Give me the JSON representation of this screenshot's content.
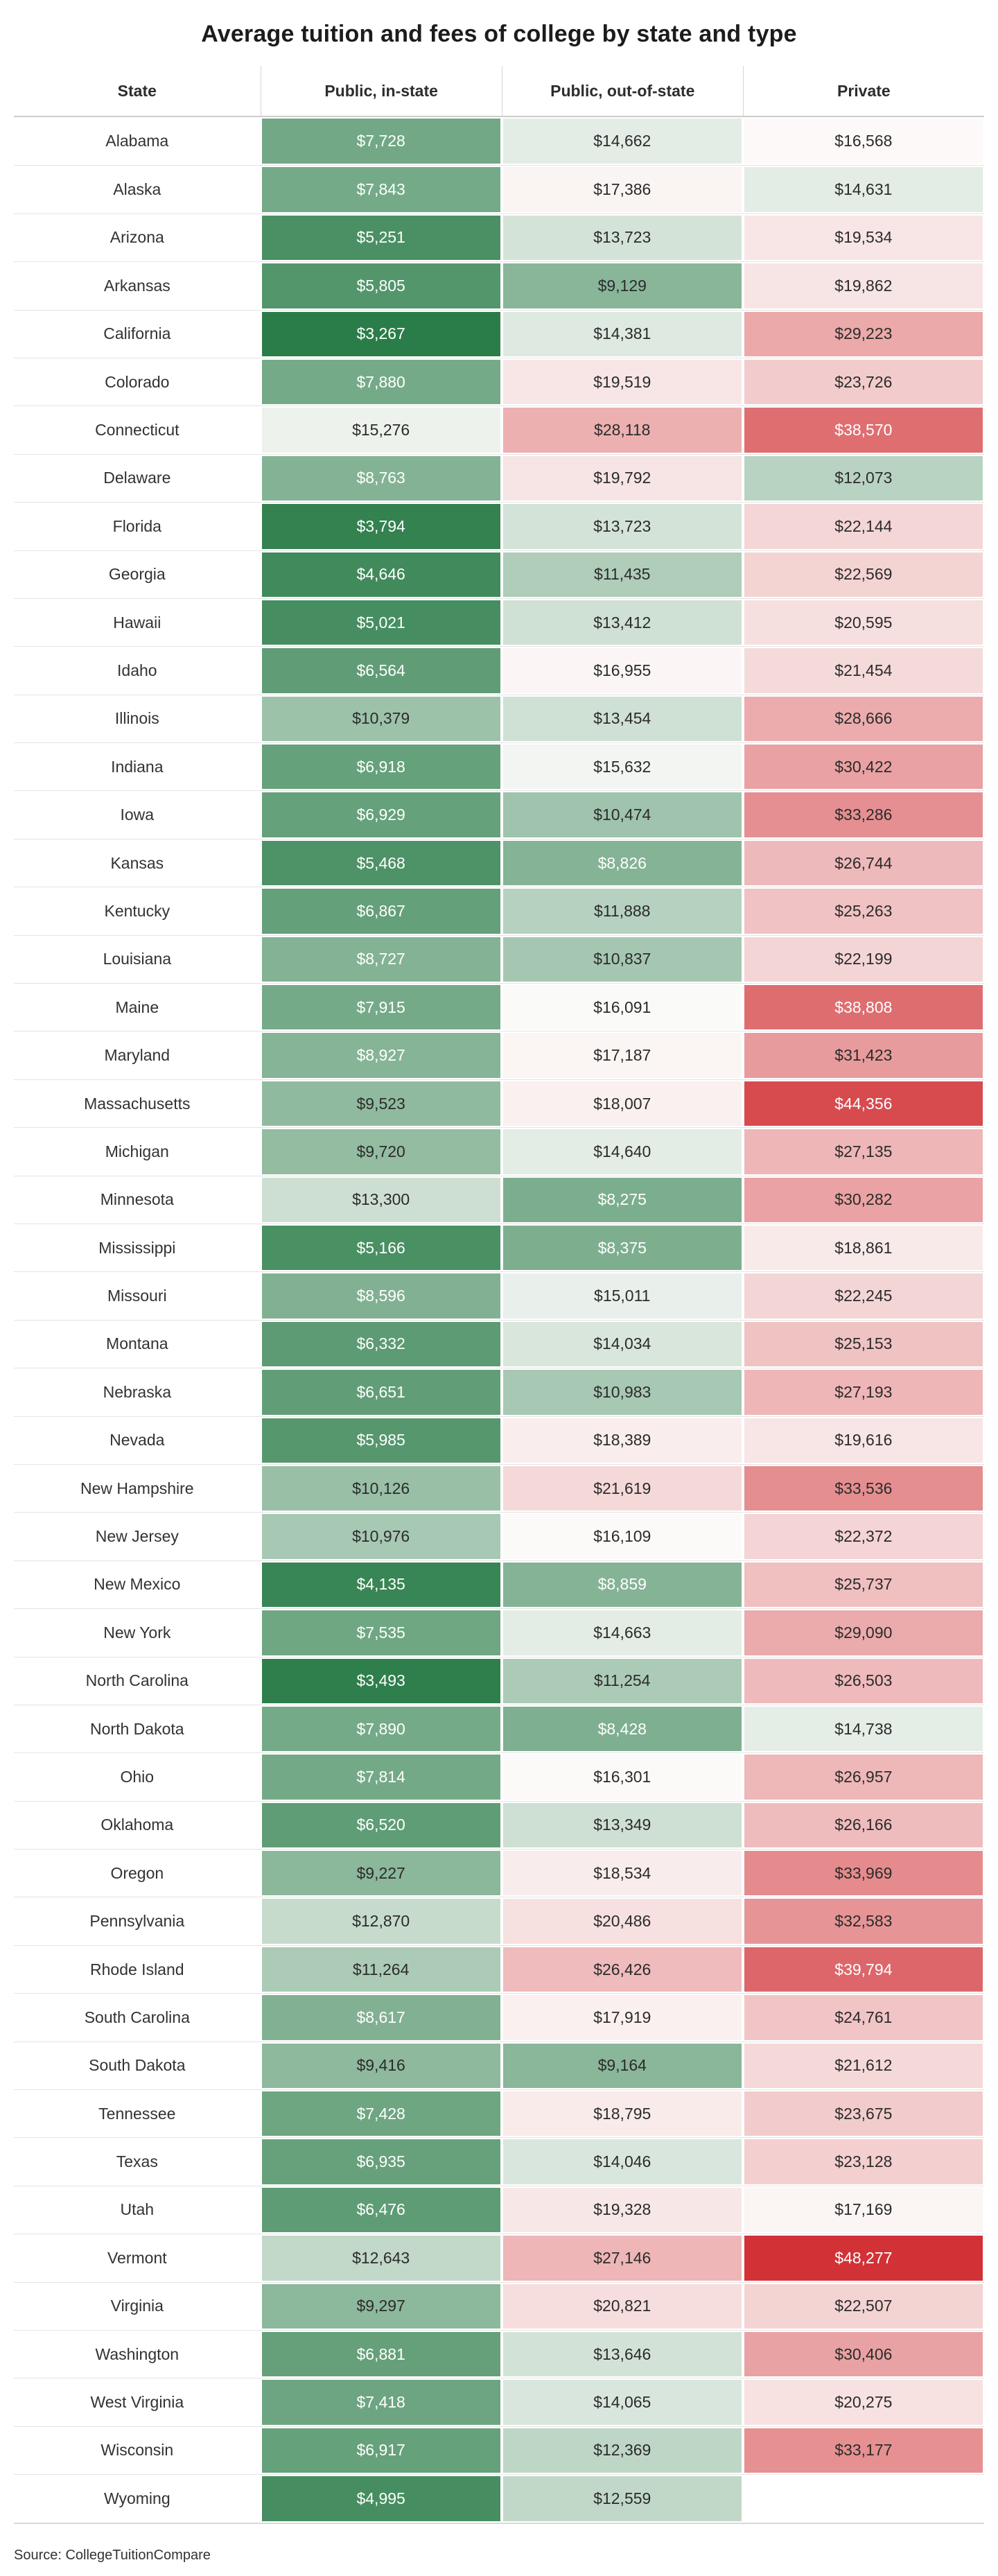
{
  "chart_data": {
    "type": "heatmap",
    "title": "Average tuition and fees of college by state and type",
    "source": "Source: CollegeTuitionCompare",
    "row_header": "State",
    "columns": [
      "Public, in-state",
      "Public, out-of-state",
      "Private"
    ],
    "legend_position": "none",
    "grid": false,
    "states": [
      "Alabama",
      "Alaska",
      "Arizona",
      "Arkansas",
      "California",
      "Colorado",
      "Connecticut",
      "Delaware",
      "Florida",
      "Georgia",
      "Hawaii",
      "Idaho",
      "Illinois",
      "Indiana",
      "Iowa",
      "Kansas",
      "Kentucky",
      "Louisiana",
      "Maine",
      "Maryland",
      "Massachusetts",
      "Michigan",
      "Minnesota",
      "Mississippi",
      "Missouri",
      "Montana",
      "Nebraska",
      "Nevada",
      "New Hampshire",
      "New Jersey",
      "New Mexico",
      "New York",
      "North Carolina",
      "North Dakota",
      "Ohio",
      "Oklahoma",
      "Oregon",
      "Pennsylvania",
      "Rhode Island",
      "South Carolina",
      "South Dakota",
      "Tennessee",
      "Texas",
      "Utah",
      "Vermont",
      "Virginia",
      "Washington",
      "West Virginia",
      "Wisconsin",
      "Wyoming"
    ],
    "series": [
      {
        "name": "Public, in-state",
        "values": [
          7728,
          7843,
          5251,
          5805,
          3267,
          7880,
          15276,
          8763,
          3794,
          4646,
          5021,
          6564,
          10379,
          6918,
          6929,
          5468,
          6867,
          8727,
          7915,
          8927,
          9523,
          9720,
          13300,
          5166,
          8596,
          6332,
          6651,
          5985,
          10126,
          10976,
          4135,
          7535,
          3493,
          7890,
          7814,
          6520,
          9227,
          12870,
          11264,
          8617,
          9416,
          7428,
          6935,
          6476,
          12643,
          9297,
          6881,
          7418,
          6917,
          4995
        ]
      },
      {
        "name": "Public, out-of-state",
        "values": [
          14662,
          17386,
          13723,
          9129,
          14381,
          19519,
          28118,
          19792,
          13723,
          11435,
          13412,
          16955,
          13454,
          15632,
          10474,
          8826,
          11888,
          10837,
          16091,
          17187,
          18007,
          14640,
          8275,
          8375,
          15011,
          14034,
          10983,
          18389,
          21619,
          16109,
          8859,
          14663,
          11254,
          8428,
          16301,
          13349,
          18534,
          20486,
          26426,
          17919,
          9164,
          18795,
          14046,
          19328,
          27146,
          20821,
          13646,
          14065,
          12369,
          12559
        ]
      },
      {
        "name": "Private",
        "values": [
          16568,
          14631,
          19534,
          19862,
          29223,
          23726,
          38570,
          12073,
          22144,
          22569,
          20595,
          21454,
          28666,
          30422,
          33286,
          26744,
          25263,
          22199,
          38808,
          31423,
          44356,
          27135,
          30282,
          18861,
          22245,
          25153,
          27193,
          19616,
          33536,
          22372,
          25737,
          29090,
          26503,
          14738,
          26957,
          26166,
          33969,
          32583,
          39794,
          24761,
          21612,
          23675,
          23128,
          17169,
          48277,
          22507,
          30406,
          20275,
          33177,
          null
        ]
      }
    ],
    "color_scale": {
      "min_value": 3267,
      "mid_value": 16200,
      "max_value": 48277,
      "min_color": "#2a7d49",
      "mid_color": "#fcfbfa",
      "max_color": "#d23136",
      "text_dark": "#2b2b2b",
      "text_light": "#ffffff",
      "white_text_below": 9000,
      "white_text_above": 36000,
      "empty_cell_color": "#ffffff"
    }
  }
}
